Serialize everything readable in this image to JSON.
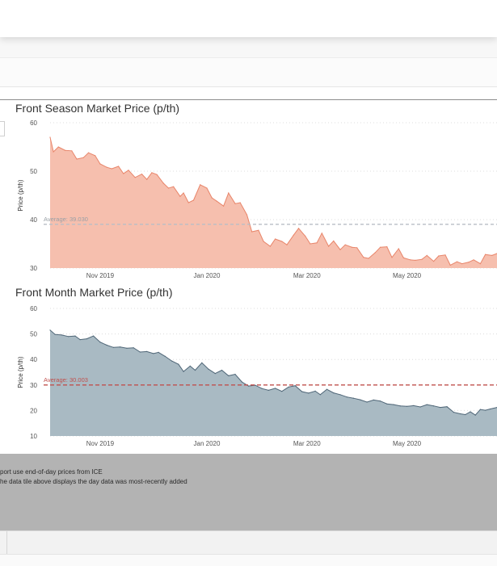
{
  "colors": {
    "season_line": "#e8856a",
    "season_fill": "#f6bfae",
    "month_line": "#4f6677",
    "month_fill": "#a9bac3",
    "season_avg_line": "#b8bec6",
    "season_avg_text": "#9aa0a6",
    "month_avg_line": "#c0504d",
    "month_avg_text": "#c0504d",
    "grid": "#dcdcdc",
    "axis_text": "#555555"
  },
  "footer": {
    "note1": "port use end-of-day prices from ICE",
    "note2": "he data tile above displays the day data was most-recently added"
  },
  "chart_data": [
    {
      "type": "area",
      "title": "Front Season Market Price (p/th)",
      "ylabel": "Price (p/th)",
      "ylim": [
        30,
        60
      ],
      "yticks": [
        30,
        40,
        50,
        60
      ],
      "xtick_labels": [
        "Nov 2019",
        "Jan 2020",
        "Mar 2020",
        "May 2020"
      ],
      "x_domain": [
        "2019-10-01",
        "2020-06-25"
      ],
      "grid": "horizontal dotted",
      "average": {
        "label": "Average: 39.030",
        "value": 39.03
      },
      "points": [
        [
          "2019-10-01",
          57
        ],
        [
          "2019-10-03",
          54
        ],
        [
          "2019-10-06",
          55
        ],
        [
          "2019-10-10",
          54.3
        ],
        [
          "2019-10-14",
          54.2
        ],
        [
          "2019-10-17",
          52.5
        ],
        [
          "2019-10-21",
          52.8
        ],
        [
          "2019-10-24",
          53.8
        ],
        [
          "2019-10-28",
          53.2
        ],
        [
          "2019-10-31",
          51.5
        ],
        [
          "2019-11-04",
          50.8
        ],
        [
          "2019-11-07",
          50.5
        ],
        [
          "2019-11-11",
          51
        ],
        [
          "2019-11-14",
          49.5
        ],
        [
          "2019-11-17",
          50.2
        ],
        [
          "2019-11-21",
          48.7
        ],
        [
          "2019-11-25",
          49.4
        ],
        [
          "2019-11-28",
          48.3
        ],
        [
          "2019-12-01",
          49.7
        ],
        [
          "2019-12-04",
          49.3
        ],
        [
          "2019-12-08",
          47.5
        ],
        [
          "2019-12-11",
          46.5
        ],
        [
          "2019-12-14",
          46.8
        ],
        [
          "2019-12-18",
          44.8
        ],
        [
          "2019-12-20",
          45.5
        ],
        [
          "2019-12-23",
          43.5
        ],
        [
          "2019-12-26",
          44
        ],
        [
          "2019-12-30",
          47.2
        ],
        [
          "2020-01-03",
          46.5
        ],
        [
          "2020-01-06",
          44.5
        ],
        [
          "2020-01-09",
          43.8
        ],
        [
          "2020-01-13",
          42.8
        ],
        [
          "2020-01-16",
          45.5
        ],
        [
          "2020-01-20",
          43.3
        ],
        [
          "2020-01-23",
          43.5
        ],
        [
          "2020-01-27",
          41
        ],
        [
          "2020-01-30",
          37.5
        ],
        [
          "2020-02-03",
          37.8
        ],
        [
          "2020-02-06",
          35.5
        ],
        [
          "2020-02-10",
          34.5
        ],
        [
          "2020-02-13",
          36
        ],
        [
          "2020-02-17",
          35.5
        ],
        [
          "2020-02-20",
          34.8
        ],
        [
          "2020-02-24",
          36.8
        ],
        [
          "2020-02-27",
          38.2
        ],
        [
          "2020-03-02",
          36.6
        ],
        [
          "2020-03-05",
          35
        ],
        [
          "2020-03-09",
          35.2
        ],
        [
          "2020-03-12",
          37.2
        ],
        [
          "2020-03-16",
          34.5
        ],
        [
          "2020-03-19",
          35.6
        ],
        [
          "2020-03-23",
          33.8
        ],
        [
          "2020-03-26",
          34.8
        ],
        [
          "2020-03-30",
          34.3
        ],
        [
          "2020-04-02",
          34.2
        ],
        [
          "2020-04-06",
          32.2
        ],
        [
          "2020-04-09",
          32
        ],
        [
          "2020-04-13",
          33.2
        ],
        [
          "2020-04-16",
          34.3
        ],
        [
          "2020-04-20",
          34.4
        ],
        [
          "2020-04-23",
          32.2
        ],
        [
          "2020-04-27",
          34
        ],
        [
          "2020-04-30",
          32.1
        ],
        [
          "2020-05-04",
          31.7
        ],
        [
          "2020-05-07",
          31.6
        ],
        [
          "2020-05-11",
          31.8
        ],
        [
          "2020-05-14",
          32.6
        ],
        [
          "2020-05-18",
          31.4
        ],
        [
          "2020-05-21",
          32.5
        ],
        [
          "2020-05-25",
          32.7
        ],
        [
          "2020-05-28",
          30.6
        ],
        [
          "2020-06-01",
          31.3
        ],
        [
          "2020-06-04",
          30.9
        ],
        [
          "2020-06-08",
          31.2
        ],
        [
          "2020-06-11",
          31.7
        ],
        [
          "2020-06-15",
          30.9
        ],
        [
          "2020-06-18",
          32.8
        ],
        [
          "2020-06-22",
          32.6
        ],
        [
          "2020-06-25",
          33
        ]
      ]
    },
    {
      "type": "area",
      "title": "Front Month Market Price (p/th)",
      "ylabel": "Price (p/th)",
      "ylim": [
        10,
        60
      ],
      "yticks": [
        10,
        20,
        30,
        40,
        50,
        60
      ],
      "xtick_labels": [
        "Nov 2019",
        "Jan 2020",
        "Mar 2020",
        "May 2020"
      ],
      "x_domain": [
        "2019-10-01",
        "2020-06-25"
      ],
      "grid": "horizontal dotted",
      "average": {
        "label": "Average: 30.003",
        "value": 30.003
      },
      "points": [
        [
          "2019-10-01",
          51.5
        ],
        [
          "2019-10-04",
          49.8
        ],
        [
          "2019-10-08",
          49.6
        ],
        [
          "2019-10-12",
          49
        ],
        [
          "2019-10-16",
          49.2
        ],
        [
          "2019-10-19",
          47.8
        ],
        [
          "2019-10-23",
          48.1
        ],
        [
          "2019-10-27",
          49.2
        ],
        [
          "2019-10-31",
          46.8
        ],
        [
          "2019-11-04",
          45.6
        ],
        [
          "2019-11-08",
          44.7
        ],
        [
          "2019-11-12",
          44.9
        ],
        [
          "2019-11-16",
          44.4
        ],
        [
          "2019-11-20",
          44.6
        ],
        [
          "2019-11-24",
          42.9
        ],
        [
          "2019-11-28",
          43.1
        ],
        [
          "2019-12-02",
          42.3
        ],
        [
          "2019-12-05",
          42.8
        ],
        [
          "2019-12-09",
          41.2
        ],
        [
          "2019-12-13",
          39.4
        ],
        [
          "2019-12-17",
          38.1
        ],
        [
          "2019-12-20",
          35.3
        ],
        [
          "2019-12-24",
          37.4
        ],
        [
          "2019-12-27",
          35.8
        ],
        [
          "2019-12-31",
          38.7
        ],
        [
          "2020-01-04",
          36.2
        ],
        [
          "2020-01-08",
          34.5
        ],
        [
          "2020-01-12",
          35.8
        ],
        [
          "2020-01-16",
          33.6
        ],
        [
          "2020-01-20",
          34.2
        ],
        [
          "2020-01-24",
          31.2
        ],
        [
          "2020-01-28",
          29.6
        ],
        [
          "2020-02-01",
          29.9
        ],
        [
          "2020-02-05",
          28.6
        ],
        [
          "2020-02-09",
          27.9
        ],
        [
          "2020-02-13",
          28.7
        ],
        [
          "2020-02-17",
          27.5
        ],
        [
          "2020-02-21",
          29.2
        ],
        [
          "2020-02-25",
          29.7
        ],
        [
          "2020-02-29",
          27.4
        ],
        [
          "2020-03-04",
          26.8
        ],
        [
          "2020-03-08",
          27.6
        ],
        [
          "2020-03-11",
          26.2
        ],
        [
          "2020-03-15",
          28.3
        ],
        [
          "2020-03-19",
          26.9
        ],
        [
          "2020-03-23",
          26.2
        ],
        [
          "2020-03-27",
          25.3
        ],
        [
          "2020-03-31",
          24.8
        ],
        [
          "2020-04-04",
          24.2
        ],
        [
          "2020-04-08",
          23.3
        ],
        [
          "2020-04-12",
          24.1
        ],
        [
          "2020-04-16",
          23.7
        ],
        [
          "2020-04-20",
          22.6
        ],
        [
          "2020-04-24",
          22.3
        ],
        [
          "2020-04-28",
          21.8
        ],
        [
          "2020-05-02",
          21.6
        ],
        [
          "2020-05-06",
          21.9
        ],
        [
          "2020-05-10",
          21.4
        ],
        [
          "2020-05-14",
          22.3
        ],
        [
          "2020-05-18",
          21.8
        ],
        [
          "2020-05-22",
          21.2
        ],
        [
          "2020-05-26",
          21.5
        ],
        [
          "2020-05-30",
          19.3
        ],
        [
          "2020-06-03",
          18.7
        ],
        [
          "2020-06-06",
          18.4
        ],
        [
          "2020-06-09",
          19.5
        ],
        [
          "2020-06-12",
          18.2
        ],
        [
          "2020-06-15",
          20.4
        ],
        [
          "2020-06-18",
          20.1
        ],
        [
          "2020-06-21",
          20.6
        ],
        [
          "2020-06-25",
          21.2
        ]
      ]
    }
  ]
}
